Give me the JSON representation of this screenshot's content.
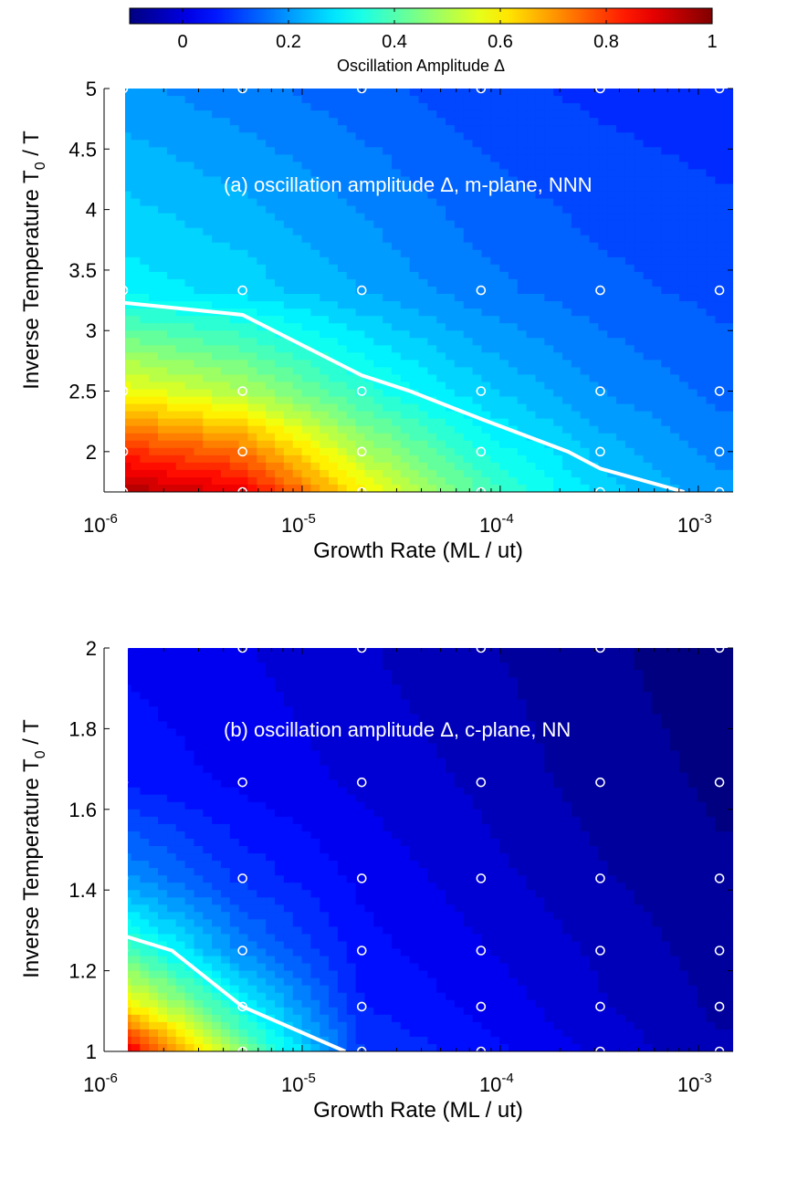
{
  "colorbar": {
    "label": "Oscillation Amplitude Δ",
    "ticks": [
      "0",
      "0.2",
      "0.4",
      "0.6",
      "0.8",
      "1"
    ],
    "tick_values": [
      0,
      0.2,
      0.4,
      0.6,
      0.8,
      1
    ],
    "range": [
      -0.1,
      1.0
    ],
    "colormap": "jet"
  },
  "chart_data": [
    {
      "type": "heatmap",
      "title": "(a) oscillation amplitude Δ, m-plane, NNN",
      "xlabel": "Growth Rate (ML / ut)",
      "ylabel": "Inverse Temperature T",
      "ylabel_sub": "0",
      "ylabel_tail": " / T",
      "x_scale": "log",
      "xlim": [
        1e-06,
        0.0015
      ],
      "ylim": [
        1.667,
        5
      ],
      "x_tick_values": [
        1e-06,
        1e-05,
        0.0001,
        0.001
      ],
      "x_tick_exps": [
        "-6",
        "-5",
        "-4",
        "-3"
      ],
      "y_tick_values": [
        2,
        2.5,
        3,
        3.5,
        4,
        4.5,
        5
      ],
      "y_tick_labels": [
        "2",
        "2.5",
        "3",
        "3.5",
        "4",
        "4.5",
        "5"
      ],
      "x": [
        1.25e-06,
        5e-06,
        2e-05,
        8e-05,
        0.00032,
        0.00128
      ],
      "y": [
        1.667,
        2.0,
        2.5,
        3.333,
        5.0
      ],
      "z": [
        [
          0.95,
          0.88,
          0.6,
          0.4,
          0.27,
          0.2
        ],
        [
          0.82,
          0.74,
          0.5,
          0.34,
          0.24,
          0.18
        ],
        [
          0.58,
          0.5,
          0.36,
          0.26,
          0.19,
          0.15
        ],
        [
          0.3,
          0.27,
          0.22,
          0.17,
          0.14,
          0.12
        ],
        [
          0.2,
          0.17,
          0.14,
          0.11,
          0.09,
          0.08
        ]
      ],
      "contour_line": {
        "label": "threshold contour",
        "x": [
          1.25e-06,
          5e-06,
          2e-05,
          3.5e-05,
          8e-05,
          0.00022,
          0.00032,
          0.00085
        ],
        "y": [
          3.23,
          3.13,
          2.63,
          2.5,
          2.27,
          2.0,
          1.86,
          1.667
        ]
      },
      "sample_points": "grid of x × y"
    },
    {
      "type": "heatmap",
      "title": "(b) oscillation amplitude Δ, c-plane, NN",
      "xlabel": "Growth Rate (ML / ut)",
      "ylabel": "Inverse Temperature T",
      "ylabel_sub": "0",
      "ylabel_tail": " / T",
      "x_scale": "log",
      "xlim": [
        1e-06,
        0.0015
      ],
      "ylim": [
        1,
        2
      ],
      "x_tick_values": [
        1e-06,
        1e-05,
        0.0001,
        0.001
      ],
      "x_tick_exps": [
        "-6",
        "-5",
        "-4",
        "-3"
      ],
      "y_tick_values": [
        1,
        1.2,
        1.4,
        1.6,
        1.8,
        2
      ],
      "y_tick_labels": [
        "1",
        "1.2",
        "1.4",
        "1.6",
        "1.8",
        "2"
      ],
      "x": [
        1.25e-06,
        5e-06,
        2e-05,
        8e-05,
        0.00032,
        0.00128
      ],
      "y": [
        1.0,
        1.111,
        1.25,
        1.429,
        1.667,
        2.0
      ],
      "z": [
        [
          0.9,
          0.45,
          0.1,
          0.05,
          0.0,
          -0.05
        ],
        [
          0.62,
          0.32,
          0.07,
          0.03,
          -0.02,
          -0.06
        ],
        [
          0.4,
          0.18,
          0.05,
          0.01,
          -0.03,
          -0.07
        ],
        [
          0.2,
          0.09,
          0.03,
          -0.01,
          -0.05,
          -0.08
        ],
        [
          0.06,
          0.03,
          0.0,
          -0.03,
          -0.07,
          -0.09
        ],
        [
          0.03,
          0.01,
          -0.02,
          -0.05,
          -0.08,
          -0.1
        ]
      ],
      "contour_line": {
        "label": "threshold contour",
        "x": [
          1.25e-06,
          2.2e-06,
          5e-06,
          1.65e-05
        ],
        "y": [
          1.287,
          1.25,
          1.111,
          1.0
        ]
      },
      "sample_points": "grid of x × y"
    }
  ]
}
